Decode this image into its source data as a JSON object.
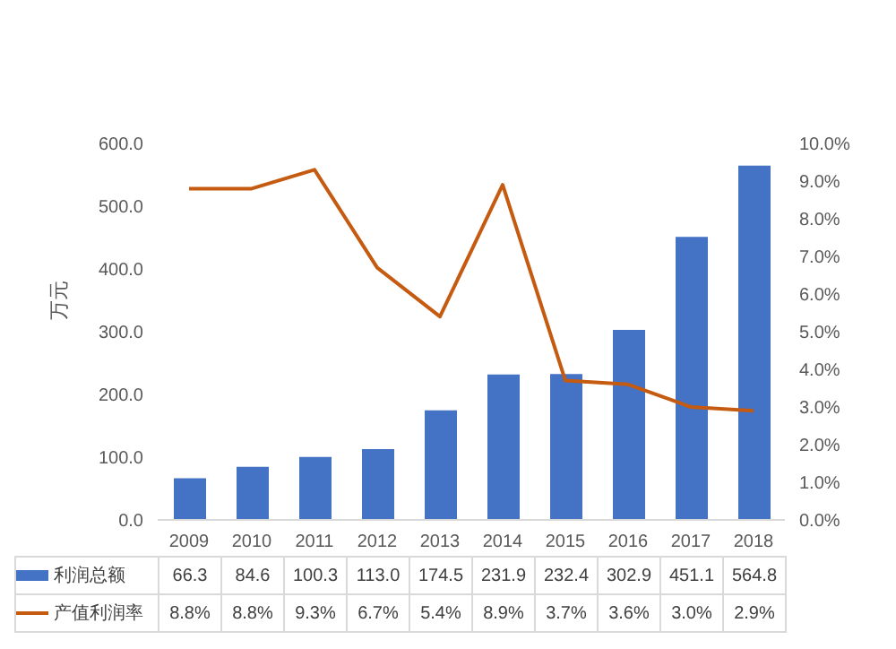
{
  "chart_data": {
    "type": "bar",
    "categories": [
      "2009",
      "2010",
      "2011",
      "2012",
      "2013",
      "2014",
      "2015",
      "2016",
      "2017",
      "2018"
    ],
    "ylabel": "万元",
    "series": [
      {
        "name": "利润总额",
        "color": "#4472c4",
        "values": [
          66.3,
          84.6,
          100.3,
          113.0,
          174.5,
          231.9,
          232.4,
          302.9,
          451.1,
          564.8
        ],
        "value_labels": [
          "66.3",
          "84.6",
          "100.3",
          "113.0",
          "174.5",
          "231.9",
          "232.4",
          "302.9",
          "451.1",
          "564.8"
        ]
      },
      {
        "name": "产值利润率",
        "type": "line",
        "axis": "y2",
        "color": "#c55a11",
        "values": [
          8.8,
          8.8,
          9.3,
          6.7,
          5.4,
          8.9,
          3.7,
          3.6,
          3.0,
          2.9
        ],
        "value_labels": [
          "8.8%",
          "8.8%",
          "9.3%",
          "6.7%",
          "5.4%",
          "8.9%",
          "3.7%",
          "3.6%",
          "3.0%",
          "2.9%"
        ]
      }
    ],
    "ylim": [
      0,
      600
    ],
    "yticks": [
      {
        "value": 0,
        "label": "0.0"
      },
      {
        "value": 100,
        "label": "100.0"
      },
      {
        "value": 200,
        "label": "200.0"
      },
      {
        "value": 300,
        "label": "300.0"
      },
      {
        "value": 400,
        "label": "400.0"
      },
      {
        "value": 500,
        "label": "500.0"
      },
      {
        "value": 600,
        "label": "600.0"
      }
    ],
    "y2lim": [
      0,
      10
    ],
    "y2ticks": [
      {
        "value": 0,
        "label": "0.0%"
      },
      {
        "value": 1,
        "label": "1.0%"
      },
      {
        "value": 2,
        "label": "2.0%"
      },
      {
        "value": 3,
        "label": "3.0%"
      },
      {
        "value": 4,
        "label": "4.0%"
      },
      {
        "value": 5,
        "label": "5.0%"
      },
      {
        "value": 6,
        "label": "6.0%"
      },
      {
        "value": 7,
        "label": "7.0%"
      },
      {
        "value": 8,
        "label": "8.0%"
      },
      {
        "value": 9,
        "label": "9.0%"
      },
      {
        "value": 10,
        "label": "10.0%"
      }
    ],
    "grid": false,
    "legend": "bottom",
    "marker": "none",
    "line_style": "solid"
  }
}
